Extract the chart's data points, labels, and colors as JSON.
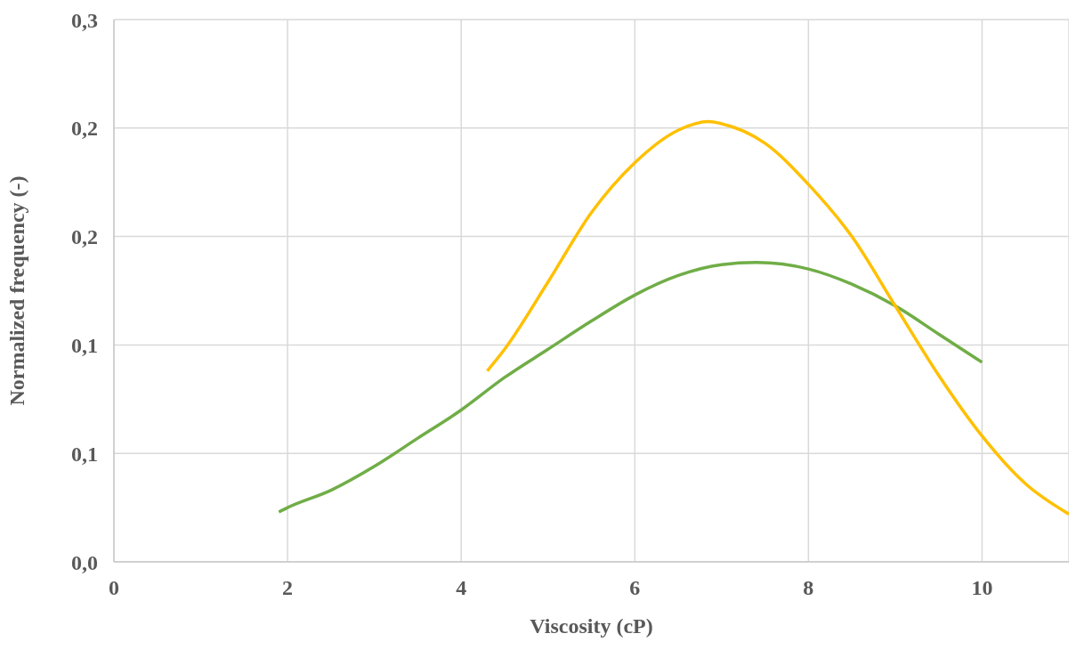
{
  "chart_data": {
    "type": "line",
    "xlabel": "Viscosity (cP)",
    "ylabel": "Normalized frequency (-)",
    "xlim": [
      0,
      11
    ],
    "xticks": [
      0,
      2,
      4,
      6,
      8,
      10
    ],
    "ylim": [
      0,
      0.25
    ],
    "yticks": [
      {
        "value": 0,
        "label": "0,0"
      },
      {
        "value": 0.05,
        "label": "0,1"
      },
      {
        "value": 0.1,
        "label": "0,1"
      },
      {
        "value": 0.15,
        "label": "0,2"
      },
      {
        "value": 0.2,
        "label": "0,2"
      },
      {
        "value": 0.25,
        "label": "0,3"
      }
    ],
    "grid": true,
    "marker": "none",
    "line_style": "solid",
    "series": [
      {
        "color": "#70ad47",
        "x": [
          1.9,
          2,
          2.5,
          3,
          3.5,
          4,
          4.5,
          5,
          5.5,
          6,
          6.5,
          7,
          7.4,
          8,
          8.5,
          9,
          9.5,
          10
        ],
        "values": [
          0.023,
          0.025,
          0.033,
          0.044,
          0.057,
          0.07,
          0.085,
          0.098,
          0.111,
          0.123,
          0.132,
          0.137,
          0.138,
          0.135,
          0.128,
          0.118,
          0.105,
          0.092
        ]
      },
      {
        "color": "#ffc000",
        "x": [
          4.3,
          4.5,
          5,
          5.5,
          6,
          6.5,
          6.85,
          7,
          7.5,
          8,
          8.5,
          9,
          9.5,
          10,
          10.5,
          11
        ],
        "values": [
          0.088,
          0.098,
          0.129,
          0.161,
          0.184,
          0.199,
          0.203,
          0.202,
          0.193,
          0.174,
          0.15,
          0.118,
          0.086,
          0.058,
          0.036,
          0.022
        ]
      }
    ]
  }
}
